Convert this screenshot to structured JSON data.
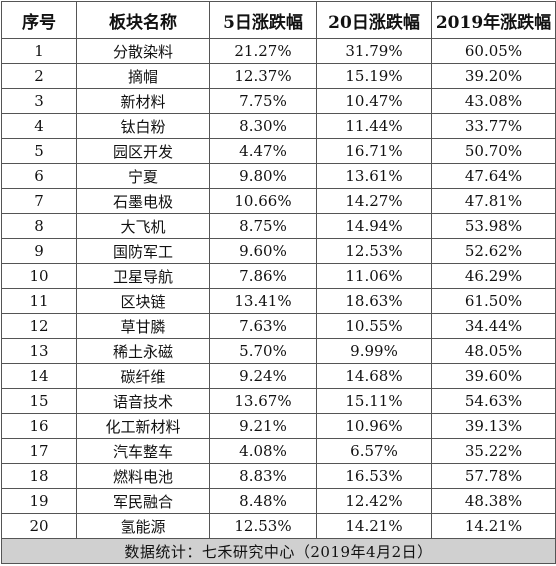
{
  "table": {
    "headers": [
      "序号",
      "板块名称",
      "5日涨跌幅",
      "20日涨跌幅",
      "2019年涨跌幅"
    ],
    "rows": [
      [
        "1",
        "分散染料",
        "21.27%",
        "31.79%",
        "60.05%"
      ],
      [
        "2",
        "摘帽",
        "12.37%",
        "15.19%",
        "39.20%"
      ],
      [
        "3",
        "新材料",
        "7.75%",
        "10.47%",
        "43.08%"
      ],
      [
        "4",
        "钛白粉",
        "8.30%",
        "11.44%",
        "33.77%"
      ],
      [
        "5",
        "园区开发",
        "4.47%",
        "16.71%",
        "50.70%"
      ],
      [
        "6",
        "宁夏",
        "9.80%",
        "13.61%",
        "47.64%"
      ],
      [
        "7",
        "石墨电极",
        "10.66%",
        "14.27%",
        "47.81%"
      ],
      [
        "8",
        "大飞机",
        "8.75%",
        "14.94%",
        "53.98%"
      ],
      [
        "9",
        "国防军工",
        "9.60%",
        "12.53%",
        "52.62%"
      ],
      [
        "10",
        "卫星导航",
        "7.86%",
        "11.06%",
        "46.29%"
      ],
      [
        "11",
        "区块链",
        "13.41%",
        "18.63%",
        "61.50%"
      ],
      [
        "12",
        "草甘膦",
        "7.63%",
        "10.55%",
        "34.44%"
      ],
      [
        "13",
        "稀土永磁",
        "5.70%",
        "9.99%",
        "48.05%"
      ],
      [
        "14",
        "碳纤维",
        "9.24%",
        "14.68%",
        "39.60%"
      ],
      [
        "15",
        "语音技术",
        "13.67%",
        "15.11%",
        "54.63%"
      ],
      [
        "16",
        "化工新材料",
        "9.21%",
        "10.96%",
        "39.13%"
      ],
      [
        "17",
        "汽车整车",
        "4.08%",
        "6.57%",
        "35.22%"
      ],
      [
        "18",
        "燃料电池",
        "8.83%",
        "16.53%",
        "57.78%"
      ],
      [
        "19",
        "军民融合",
        "8.48%",
        "12.42%",
        "48.38%"
      ],
      [
        "20",
        "氢能源",
        "12.53%",
        "14.21%",
        "14.21%"
      ]
    ],
    "footer": "数据统计：七禾研究中心（2019年4月2日）"
  }
}
